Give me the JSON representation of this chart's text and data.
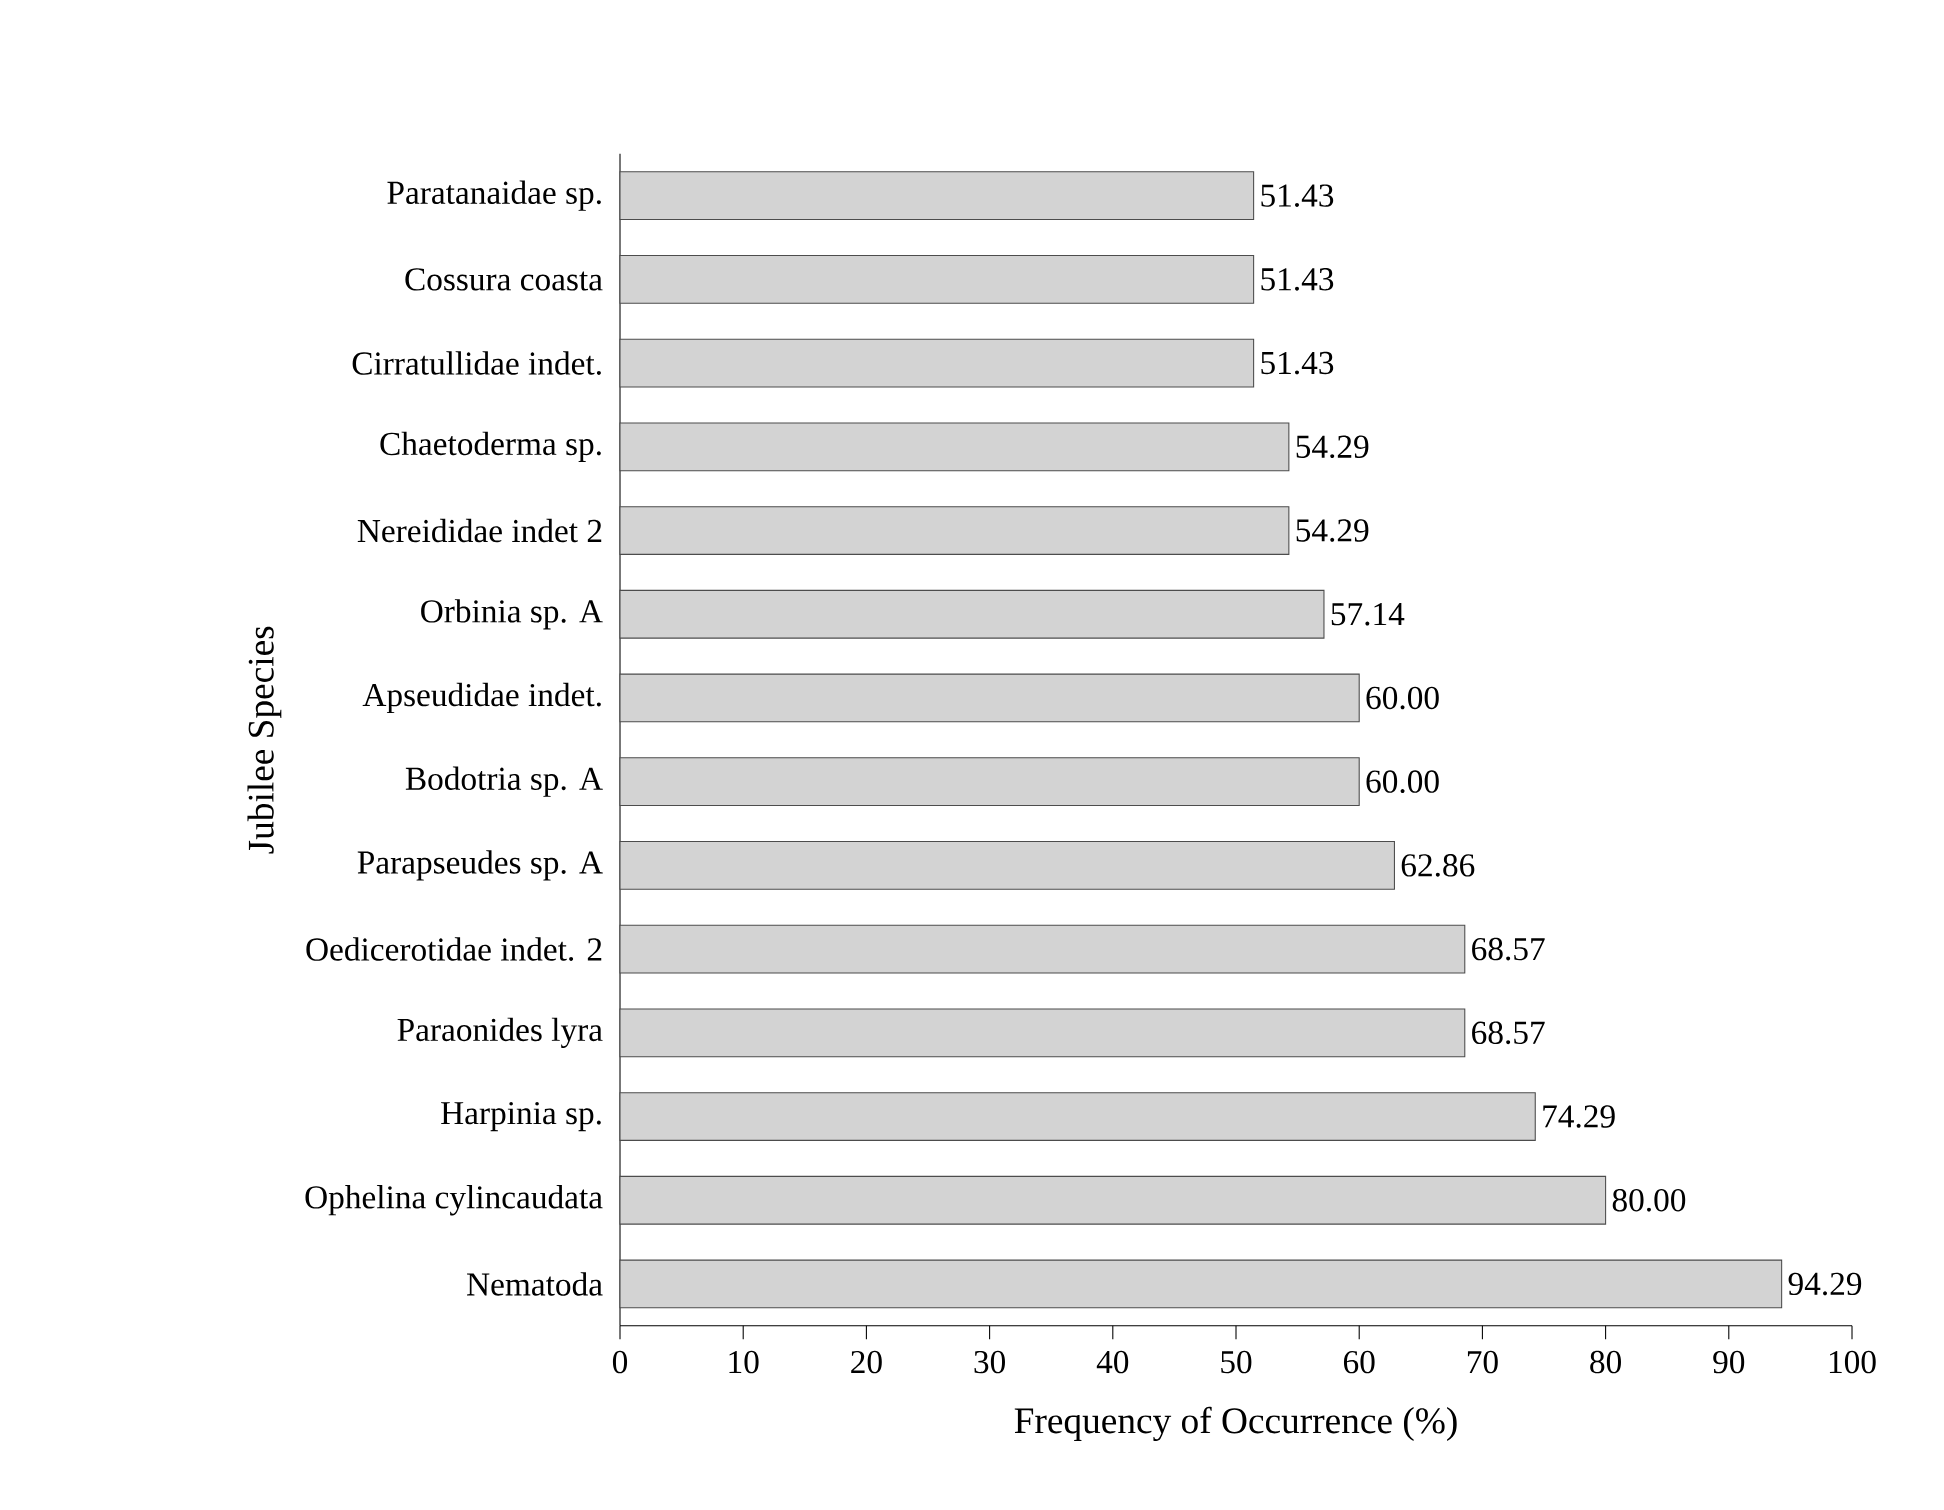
{
  "chart_data": {
    "type": "bar",
    "orientation": "horizontal",
    "xlabel": "Frequency of Occurrence (%)",
    "ylabel": "Jubilee Species",
    "categories": [
      "Paratanaidae sp.",
      "Cossura coasta",
      "Cirratullidae indet.",
      "Chaetoderma sp.",
      "Nereididae indet 2",
      "Orbinia  sp. A",
      "Apseudidae indet.",
      "Bodotria sp. A",
      "Parapseudes sp. A",
      "Oedicerotidae indet. 2",
      "Paraonides lyra",
      "Harpinia sp.",
      "Ophelina cylincaudata",
      "Nematoda"
    ],
    "values": [
      51.43,
      51.43,
      51.43,
      54.29,
      54.29,
      57.14,
      60.0,
      60.0,
      62.86,
      68.57,
      68.57,
      74.29,
      80.0,
      94.29
    ],
    "value_labels": [
      "51.43",
      "51.43",
      "51.43",
      "54.29",
      "54.29",
      "57.14",
      "60.00",
      "60.00",
      "62.86",
      "68.57",
      "68.57",
      "74.29",
      "80.00",
      "94.29"
    ],
    "color": "#d3d3d3",
    "xlim": [
      0,
      100
    ],
    "xticks": [
      0,
      10,
      20,
      30,
      40,
      50,
      60,
      70,
      80,
      90,
      100
    ],
    "grid": false
  }
}
